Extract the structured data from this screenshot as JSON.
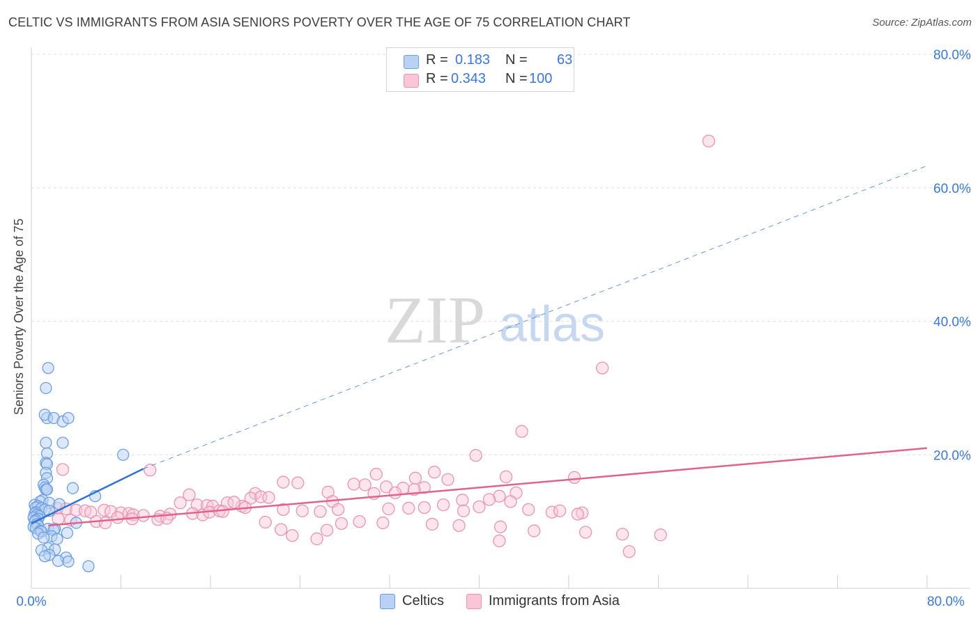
{
  "title": "CELTIC VS IMMIGRANTS FROM ASIA SENIORS POVERTY OVER THE AGE OF 75 CORRELATION CHART",
  "source": "Source: ZipAtlas.com",
  "watermark": {
    "zip": "ZIP",
    "atlas": "atlas"
  },
  "colors": {
    "celtic_fill": "#b9d2f3",
    "celtic_stroke": "#6b9ee0",
    "celtic_line": "#2f72d6",
    "asia_fill": "#f8c6d6",
    "asia_stroke": "#e894b2",
    "asia_line": "#e0628e",
    "grid": "#e2e2e2",
    "tick_text": "#3a78d4"
  },
  "legend": {
    "rows": [
      {
        "r_label": "R =",
        "r_value": "0.183",
        "n_label": "N =",
        "n_value": "63"
      },
      {
        "r_label": "R =",
        "r_value": "0.343",
        "n_label": "N =",
        "n_value": "100"
      }
    ]
  },
  "bottom_legend": {
    "celtic": "Celtics",
    "asia": "Immigrants from Asia"
  },
  "chart_data": {
    "type": "scatter",
    "title": "CELTIC VS IMMIGRANTS FROM ASIA SENIORS POVERTY OVER THE AGE OF 75 CORRELATION CHART",
    "xlabel": "",
    "ylabel": "Seniors Poverty Over the Age of 75",
    "xlim": [
      0,
      80
    ],
    "ylim": [
      0,
      80
    ],
    "x_tick_labels": [
      "0.0%",
      "80.0%"
    ],
    "y_ticks": [
      20,
      40,
      60,
      80
    ],
    "y_tick_labels": [
      "20.0%",
      "40.0%",
      "60.0%",
      "80.0%"
    ],
    "grid": true,
    "legend_position": "top-center",
    "series": [
      {
        "name": "Celtics",
        "R": 0.183,
        "N": 63,
        "trend": {
          "x": [
            0,
            10
          ],
          "y": [
            9.7,
            17.9
          ],
          "extended_to": [
            80,
            63.3
          ]
        },
        "points": [
          [
            1.5,
            33
          ],
          [
            1.3,
            30
          ],
          [
            1.4,
            25.5
          ],
          [
            1.2,
            26
          ],
          [
            2.0,
            25.5
          ],
          [
            2.8,
            25
          ],
          [
            3.3,
            25.5
          ],
          [
            1.3,
            21.8
          ],
          [
            2.8,
            21.8
          ],
          [
            1.4,
            20.2
          ],
          [
            1.3,
            18.8
          ],
          [
            1.4,
            18.6
          ],
          [
            8.2,
            20.0
          ],
          [
            1.3,
            17.3
          ],
          [
            1.4,
            16.5
          ],
          [
            1.1,
            15.5
          ],
          [
            1.2,
            15.1
          ],
          [
            3.7,
            15.0
          ],
          [
            1.3,
            14.8
          ],
          [
            1.4,
            14.8
          ],
          [
            5.7,
            13.8
          ],
          [
            1.0,
            13.2
          ],
          [
            0.8,
            13.0
          ],
          [
            1.6,
            12.8
          ],
          [
            2.5,
            12.6
          ],
          [
            0.3,
            12.5
          ],
          [
            0.6,
            12.3
          ],
          [
            0.4,
            12.1
          ],
          [
            0.9,
            12.0
          ],
          [
            1.2,
            11.8
          ],
          [
            1.6,
            11.6
          ],
          [
            0.4,
            11.4
          ],
          [
            0.3,
            11.2
          ],
          [
            0.5,
            11.0
          ],
          [
            0.7,
            10.8
          ],
          [
            0.2,
            10.6
          ],
          [
            0.6,
            10.4
          ],
          [
            0.4,
            10.2
          ],
          [
            0.3,
            10.0
          ],
          [
            4.0,
            9.8
          ],
          [
            0.5,
            9.6
          ],
          [
            0.6,
            9.4
          ],
          [
            0.2,
            9.2
          ],
          [
            0.4,
            9.0
          ],
          [
            1.5,
            8.9
          ],
          [
            2.1,
            8.9
          ],
          [
            2.0,
            8.7
          ],
          [
            0.8,
            8.6
          ],
          [
            0.9,
            8.5
          ],
          [
            3.2,
            8.3
          ],
          [
            0.6,
            8.2
          ],
          [
            1.8,
            7.8
          ],
          [
            1.1,
            7.6
          ],
          [
            2.3,
            7.4
          ],
          [
            1.5,
            6.0
          ],
          [
            2.1,
            5.8
          ],
          [
            0.9,
            5.7
          ],
          [
            1.6,
            5.0
          ],
          [
            1.2,
            4.8
          ],
          [
            3.1,
            4.6
          ],
          [
            2.4,
            4.1
          ],
          [
            3.3,
            4.0
          ],
          [
            5.1,
            3.3
          ]
        ]
      },
      {
        "name": "Immigrants from Asia",
        "R": 0.343,
        "N": 100,
        "trend": {
          "x": [
            1.5,
            80
          ],
          "y": [
            9.4,
            21.0
          ]
        },
        "points": [
          [
            60.5,
            67
          ],
          [
            51,
            33
          ],
          [
            43.8,
            23.5
          ],
          [
            39.7,
            19.9
          ],
          [
            2.8,
            17.8
          ],
          [
            10.6,
            17.7
          ],
          [
            36,
            17.4
          ],
          [
            30.8,
            17.1
          ],
          [
            42.4,
            16.7
          ],
          [
            48.5,
            16.6
          ],
          [
            34.3,
            16.5
          ],
          [
            37.2,
            16.3
          ],
          [
            22.5,
            15.9
          ],
          [
            23.8,
            15.8
          ],
          [
            28.8,
            15.6
          ],
          [
            29.8,
            15.5
          ],
          [
            31.7,
            15.2
          ],
          [
            33.2,
            15.0
          ],
          [
            35.1,
            15.1
          ],
          [
            34.2,
            14.8
          ],
          [
            26.5,
            14.4
          ],
          [
            30.6,
            14.2
          ],
          [
            32.5,
            14.3
          ],
          [
            20,
            14.2
          ],
          [
            14.1,
            14.0
          ],
          [
            43.3,
            14.3
          ],
          [
            41.8,
            13.8
          ],
          [
            19.6,
            13.5
          ],
          [
            20.5,
            13.7
          ],
          [
            21.2,
            13.6
          ],
          [
            40.9,
            13.3
          ],
          [
            38.5,
            13.2
          ],
          [
            42.8,
            13.0
          ],
          [
            26.9,
            13.0
          ],
          [
            13.3,
            12.8
          ],
          [
            17.5,
            12.8
          ],
          [
            14.8,
            12.5
          ],
          [
            15.7,
            12.4
          ],
          [
            16.2,
            12.3
          ],
          [
            18.8,
            12.3
          ],
          [
            19.1,
            12.1
          ],
          [
            36.8,
            12.5
          ],
          [
            40,
            12.2
          ],
          [
            2.3,
            12.0
          ],
          [
            3.1,
            11.9
          ],
          [
            4.0,
            11.7
          ],
          [
            4.8,
            11.6
          ],
          [
            5.3,
            11.4
          ],
          [
            6.5,
            11.7
          ],
          [
            7.1,
            11.5
          ],
          [
            8.0,
            11.3
          ],
          [
            8.7,
            11.2
          ],
          [
            9.1,
            11.0
          ],
          [
            10.0,
            10.9
          ],
          [
            11.5,
            10.8
          ],
          [
            12.4,
            11.1
          ],
          [
            14.4,
            11.2
          ],
          [
            15.3,
            11.0
          ],
          [
            15.9,
            11.4
          ],
          [
            16.8,
            11.6
          ],
          [
            17.1,
            11.5
          ],
          [
            22.5,
            11.8
          ],
          [
            24.2,
            11.6
          ],
          [
            25.8,
            11.5
          ],
          [
            27.4,
            11.8
          ],
          [
            31.9,
            11.9
          ],
          [
            33.7,
            12.0
          ],
          [
            35.1,
            12.1
          ],
          [
            38.6,
            11.6
          ],
          [
            44.4,
            11.8
          ],
          [
            46.5,
            11.4
          ],
          [
            47.2,
            11.6
          ],
          [
            49.2,
            11.3
          ],
          [
            48.8,
            11.1
          ],
          [
            7.7,
            10.6
          ],
          [
            9.0,
            10.4
          ],
          [
            11.3,
            10.3
          ],
          [
            12.1,
            10.5
          ],
          [
            2.4,
            10.4
          ],
          [
            3.5,
            10.2
          ],
          [
            5.8,
            10.0
          ],
          [
            6.6,
            9.8
          ],
          [
            20.9,
            9.9
          ],
          [
            27.7,
            9.7
          ],
          [
            29.3,
            10.0
          ],
          [
            31.4,
            9.8
          ],
          [
            35.8,
            9.6
          ],
          [
            38.2,
            9.4
          ],
          [
            41.9,
            9.2
          ],
          [
            44.9,
            8.6
          ],
          [
            22.3,
            8.8
          ],
          [
            26.4,
            8.7
          ],
          [
            23.3,
            7.9
          ],
          [
            25.5,
            7.4
          ],
          [
            41.8,
            7.1
          ],
          [
            49.5,
            8.4
          ],
          [
            52.8,
            8.1
          ],
          [
            56.2,
            8.0
          ],
          [
            53.4,
            5.5
          ],
          [
            18.1,
            12.9
          ]
        ]
      }
    ]
  }
}
